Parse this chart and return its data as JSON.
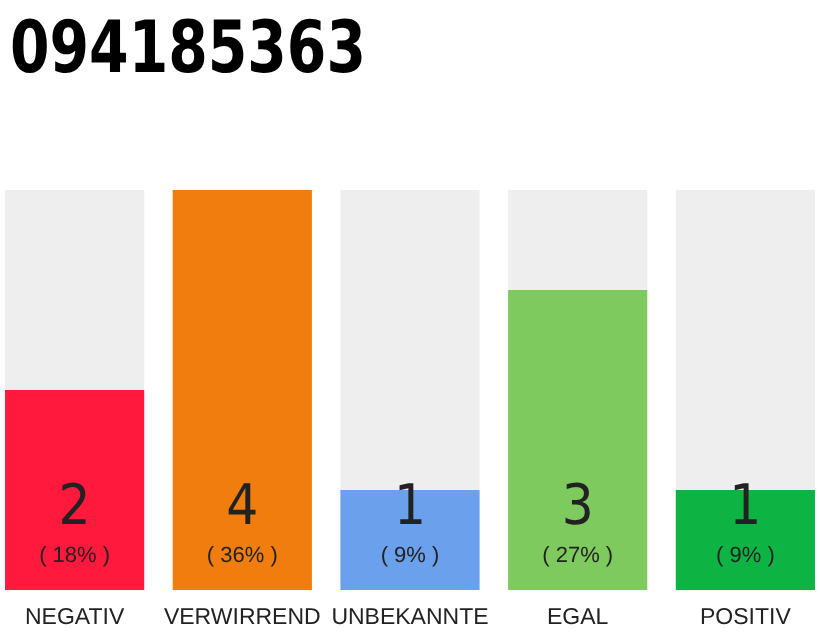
{
  "chart_data": {
    "type": "bar",
    "title": "094185363",
    "categories": [
      "NEGATIV",
      "VERWIRREND",
      "UNBEKANNTE",
      "EGAL",
      "POSITIV"
    ],
    "values": [
      2,
      4,
      1,
      3,
      1
    ],
    "colors": [
      "#ff1a3d",
      "#f07d0e",
      "#6aa0ec",
      "#7eca5e",
      "#0db444"
    ],
    "ylim": [
      0,
      4
    ],
    "data_labels": true,
    "annotations": [
      "( 18% )",
      "( 36% )",
      "( 9% )",
      "( 27% )",
      "( 9% )"
    ]
  }
}
